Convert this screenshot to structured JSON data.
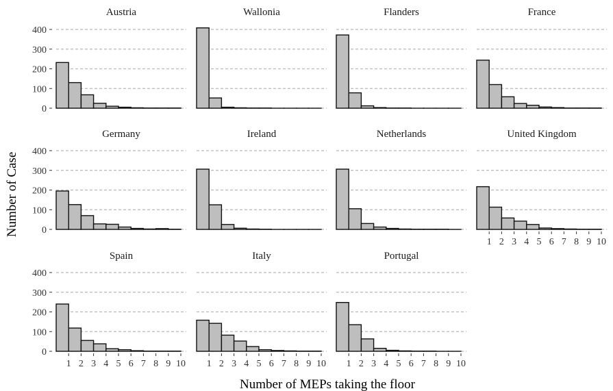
{
  "chart_data": {
    "type": "bar",
    "xlabel": "Number of MEPs taking the floor",
    "ylabel": "Number of Case",
    "ylim": [
      0,
      420
    ],
    "y_ticks": [
      0,
      100,
      200,
      300,
      400
    ],
    "x_bins": [
      0,
      1,
      2,
      3,
      4,
      5,
      6,
      7,
      8,
      9,
      10
    ],
    "x_tick_labels": [
      "1",
      "2",
      "3",
      "4",
      "5",
      "6",
      "7",
      "8",
      "9",
      "10"
    ],
    "grid": true,
    "panels": [
      {
        "name": "Austria",
        "values": [
          232,
          130,
          68,
          25,
          10,
          5,
          2,
          1,
          1,
          1
        ]
      },
      {
        "name": "Wallonia",
        "values": [
          408,
          52,
          5,
          2,
          1,
          1,
          0,
          0,
          0,
          0
        ]
      },
      {
        "name": "Flanders",
        "values": [
          372,
          78,
          12,
          3,
          1,
          1,
          0,
          0,
          0,
          0
        ]
      },
      {
        "name": "France",
        "values": [
          244,
          120,
          58,
          24,
          15,
          6,
          3,
          1,
          1,
          1
        ]
      },
      {
        "name": "Germany",
        "values": [
          195,
          126,
          70,
          28,
          26,
          12,
          5,
          2,
          4,
          1
        ]
      },
      {
        "name": "Ireland",
        "values": [
          306,
          125,
          25,
          6,
          2,
          1,
          0,
          0,
          0,
          0
        ]
      },
      {
        "name": "Netherlands",
        "values": [
          306,
          105,
          30,
          12,
          5,
          2,
          1,
          1,
          1,
          0
        ]
      },
      {
        "name": "United Kingdom",
        "values": [
          217,
          113,
          58,
          42,
          25,
          7,
          4,
          2,
          1,
          1
        ]
      },
      {
        "name": "Spain",
        "values": [
          240,
          118,
          55,
          38,
          13,
          8,
          3,
          1,
          1,
          1
        ]
      },
      {
        "name": "Italy",
        "values": [
          158,
          142,
          82,
          52,
          24,
          8,
          4,
          2,
          1,
          1
        ]
      },
      {
        "name": "Portugal",
        "values": [
          248,
          135,
          63,
          15,
          5,
          2,
          1,
          1,
          0,
          0
        ]
      }
    ]
  }
}
